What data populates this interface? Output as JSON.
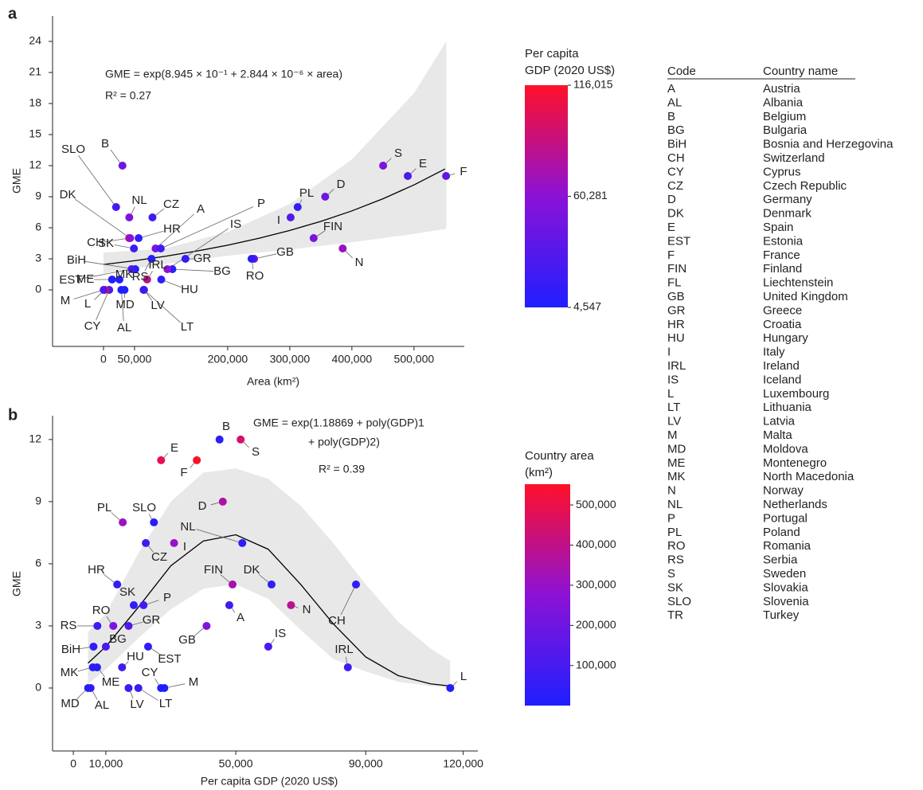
{
  "chart_data": [
    {
      "type": "scatter",
      "panel": "a",
      "equation": [
        "GME = exp(8.945 × 10⁻¹ + 2.844 × 10⁻⁶ × area)"
      ],
      "r2": "R² = 0.27",
      "x_label": "Area (km²)",
      "y_label": "GME",
      "labels": [
        "A",
        "AL",
        "B",
        "BG",
        "BiH",
        "CH",
        "CY",
        "CZ",
        "D",
        "DK",
        "E",
        "EST",
        "F",
        "FIN",
        "GB",
        "GR",
        "HR",
        "HU",
        "I",
        "IRL",
        "IS",
        "L",
        "LT",
        "LV",
        "M",
        "MD",
        "ME",
        "MK",
        "N",
        "NL",
        "P",
        "PL",
        "RO",
        "RS",
        "S",
        "SK",
        "SLO"
      ],
      "x": [
        83879,
        28748,
        30528,
        110994,
        51197,
        41285,
        9251,
        78871,
        357022,
        42943,
        490000,
        45228,
        551695,
        338424,
        242495,
        131957,
        56594,
        93028,
        301340,
        70273,
        103000,
        2586,
        65300,
        64589,
        316,
        33846,
        13812,
        25713,
        385207,
        41543,
        92212,
        312696,
        238397,
        77474,
        450295,
        49035,
        20273
      ],
      "values": [
        4,
        0,
        12,
        2,
        2,
        5,
        0,
        7,
        9,
        5,
        11,
        2,
        11,
        5,
        3,
        3,
        5,
        1,
        7,
        1,
        2,
        0,
        0,
        0,
        0,
        0,
        1,
        1,
        4,
        7,
        4,
        8,
        3,
        3,
        12,
        4,
        8
      ],
      "color_values": [
        48000,
        5300,
        45000,
        10000,
        6200,
        87000,
        27000,
        22300,
        46000,
        61000,
        27000,
        23000,
        38000,
        49000,
        41000,
        17000,
        13500,
        15000,
        31000,
        84500,
        60000,
        116015,
        20000,
        17000,
        28000,
        4547,
        7300,
        6000,
        67000,
        52000,
        21600,
        15200,
        12300,
        7400,
        51500,
        18600,
        24800
      ],
      "xlim": [
        -82000,
        581000
      ],
      "ylim": [
        -5.46,
        26.46
      ],
      "xticks": [
        0,
        {
          "value": 50000,
          "label": "50,000"
        },
        {
          "value": 200000,
          "label": "200,000"
        },
        {
          "value": 300000,
          "label": "300,000"
        },
        {
          "value": 400000,
          "label": "400,000"
        },
        {
          "value": 500000,
          "label": "500,000"
        }
      ],
      "yticks": [
        0,
        3,
        6,
        9,
        12,
        15,
        18,
        21,
        24
      ],
      "fit": {
        "x": [
          0,
          50000,
          100000,
          150000,
          200000,
          250000,
          300000,
          350000,
          400000,
          450000,
          500000,
          550000
        ],
        "values": [
          2.45,
          2.82,
          3.25,
          3.75,
          4.32,
          4.98,
          5.74,
          6.62,
          7.63,
          8.8,
          10.14,
          11.68
        ],
        "color": "#000000"
      },
      "band": {
        "x": [
          0,
          100000,
          200000,
          300000,
          400000,
          500000,
          552000
        ],
        "upper": [
          3.6,
          4.0,
          5.6,
          8.3,
          12.6,
          19.0,
          24.0
        ],
        "lower": [
          1.6,
          2.5,
          3.3,
          3.9,
          4.6,
          5.4,
          5.9
        ],
        "color": "#e8e8e8"
      },
      "colorbar": {
        "title": [
          "Per capita",
          "GDP (2020 US$)"
        ],
        "lim": [
          4547,
          116015
        ],
        "colors": [
          "#1f1fff",
          "#8c12d6",
          "#ff1028"
        ],
        "ticks": [
          {
            "value": 116015,
            "label": "116,015"
          },
          {
            "value": 60281,
            "label": "60,281"
          },
          {
            "value": 4547,
            "label": "4,547"
          }
        ]
      }
    },
    {
      "type": "scatter",
      "panel": "b",
      "equation": [
        "GME = exp(1.18869 + poly(GDP)1",
        "+ poly(GDP)2)"
      ],
      "r2": "R² = 0.39",
      "x_label": "Per capita GDP (2020 US$)",
      "y_label": "GME",
      "labels": [
        "A",
        "AL",
        "B",
        "BG",
        "BiH",
        "CH",
        "CY",
        "CZ",
        "D",
        "DK",
        "E",
        "EST",
        "F",
        "FIN",
        "GB",
        "GR",
        "HR",
        "HU",
        "I",
        "IRL",
        "IS",
        "L",
        "LT",
        "LV",
        "M",
        "MD",
        "ME",
        "MK",
        "N",
        "NL",
        "P",
        "PL",
        "RO",
        "RS",
        "S",
        "SK",
        "SLO"
      ],
      "x": [
        48000,
        5300,
        45000,
        10000,
        6200,
        87000,
        27000,
        22300,
        46000,
        61000,
        27000,
        23000,
        38000,
        49000,
        41000,
        17000,
        13500,
        15000,
        31000,
        84500,
        60000,
        116015,
        20000,
        17000,
        28000,
        4547,
        7300,
        6000,
        67000,
        52000,
        21600,
        15200,
        12300,
        7400,
        51500,
        18600,
        24800
      ],
      "values": [
        4,
        0,
        12,
        2,
        2,
        5,
        0,
        7,
        9,
        5,
        11,
        2,
        11,
        5,
        3,
        3,
        5,
        1,
        7,
        1,
        2,
        0,
        0,
        0,
        0,
        0,
        1,
        1,
        4,
        7,
        4,
        8,
        3,
        3,
        12,
        4,
        8
      ],
      "color_values": [
        83879,
        28748,
        30528,
        110994,
        51197,
        41285,
        9251,
        78871,
        357022,
        42943,
        490000,
        45228,
        551695,
        338424,
        242495,
        131957,
        56594,
        93028,
        301340,
        70273,
        103000,
        2586,
        65300,
        64589,
        316,
        33846,
        13812,
        25713,
        385207,
        41543,
        92212,
        312696,
        238397,
        77474,
        450295,
        49035,
        20273
      ],
      "xlim": [
        -6400,
        124500
      ],
      "ylim": [
        -3.04,
        13.15
      ],
      "xticks": [
        0,
        {
          "value": 10000,
          "label": "10,000"
        },
        {
          "value": 50000,
          "label": "50,000"
        },
        {
          "value": 90000,
          "label": "90,000"
        },
        {
          "value": 120000,
          "label": "120,000"
        }
      ],
      "yticks": [
        0,
        3,
        6,
        9,
        12
      ],
      "fit": {
        "x": [
          4500,
          10000,
          20000,
          30000,
          40000,
          50000,
          60000,
          70000,
          80000,
          90000,
          100000,
          110000,
          116000
        ],
        "values": [
          1.2,
          2.0,
          3.9,
          5.9,
          7.1,
          7.4,
          6.7,
          5.0,
          3.1,
          1.5,
          0.6,
          0.2,
          0.1
        ],
        "color": "#000000"
      },
      "band": {
        "x": [
          4500,
          10000,
          20000,
          30000,
          40000,
          50000,
          60000,
          70000,
          80000,
          90000,
          100000,
          110000,
          116000
        ],
        "upper": [
          2.7,
          3.6,
          6.5,
          9.0,
          10.4,
          10.6,
          10.1,
          8.8,
          7.0,
          5.0,
          3.2,
          1.9,
          1.3
        ],
        "lower": [
          0.2,
          0.9,
          2.4,
          3.8,
          4.8,
          5.0,
          4.3,
          2.8,
          1.4,
          0.8,
          0.3,
          0.1,
          0
        ],
        "color": "#e8e8e8"
      },
      "colorbar": {
        "title": [
          "Country area",
          "(km²)"
        ],
        "lim": [
          316,
          551695
        ],
        "colors": [
          "#1f1fff",
          "#8c12d6",
          "#ff1028"
        ],
        "ticks": [
          {
            "value": 500000,
            "label": "500,000"
          },
          {
            "value": 400000,
            "label": "400,000"
          },
          {
            "value": 300000,
            "label": "300,000"
          },
          {
            "value": 200000,
            "label": "200,000"
          },
          {
            "value": 100000,
            "label": "100,000"
          }
        ]
      }
    }
  ],
  "code_table": {
    "headers": [
      "Code",
      "Country name"
    ],
    "rows": [
      [
        "A",
        "Austria"
      ],
      [
        "AL",
        "Albania"
      ],
      [
        "B",
        "Belgium"
      ],
      [
        "BG",
        "Bulgaria"
      ],
      [
        "BiH",
        "Bosnia and Herzegovina"
      ],
      [
        "CH",
        "Switzerland"
      ],
      [
        "CY",
        "Cyprus"
      ],
      [
        "CZ",
        "Czech Republic"
      ],
      [
        "D",
        "Germany"
      ],
      [
        "DK",
        "Denmark"
      ],
      [
        "E",
        "Spain"
      ],
      [
        "EST",
        "Estonia"
      ],
      [
        "F",
        "France"
      ],
      [
        "FIN",
        "Finland"
      ],
      [
        "FL",
        "Liechtenstein"
      ],
      [
        "GB",
        "United Kingdom"
      ],
      [
        "GR",
        "Greece"
      ],
      [
        "HR",
        "Croatia"
      ],
      [
        "HU",
        "Hungary"
      ],
      [
        "I",
        "Italy"
      ],
      [
        "IRL",
        "Ireland"
      ],
      [
        "IS",
        "Iceland"
      ],
      [
        "L",
        "Luxembourg"
      ],
      [
        "LT",
        "Lithuania"
      ],
      [
        "LV",
        "Latvia"
      ],
      [
        "M",
        "Malta"
      ],
      [
        "MD",
        "Moldova"
      ],
      [
        "ME",
        "Montenegro"
      ],
      [
        "MK",
        "North Macedonia"
      ],
      [
        "N",
        "Norway"
      ],
      [
        "NL",
        "Netherlands"
      ],
      [
        "P",
        "Portugal"
      ],
      [
        "PL",
        "Poland"
      ],
      [
        "RO",
        "Romania"
      ],
      [
        "RS",
        "Serbia"
      ],
      [
        "S",
        "Sweden"
      ],
      [
        "SK",
        "Slovakia"
      ],
      [
        "SLO",
        "Slovenia"
      ],
      [
        "TR",
        "Turkey"
      ]
    ]
  }
}
